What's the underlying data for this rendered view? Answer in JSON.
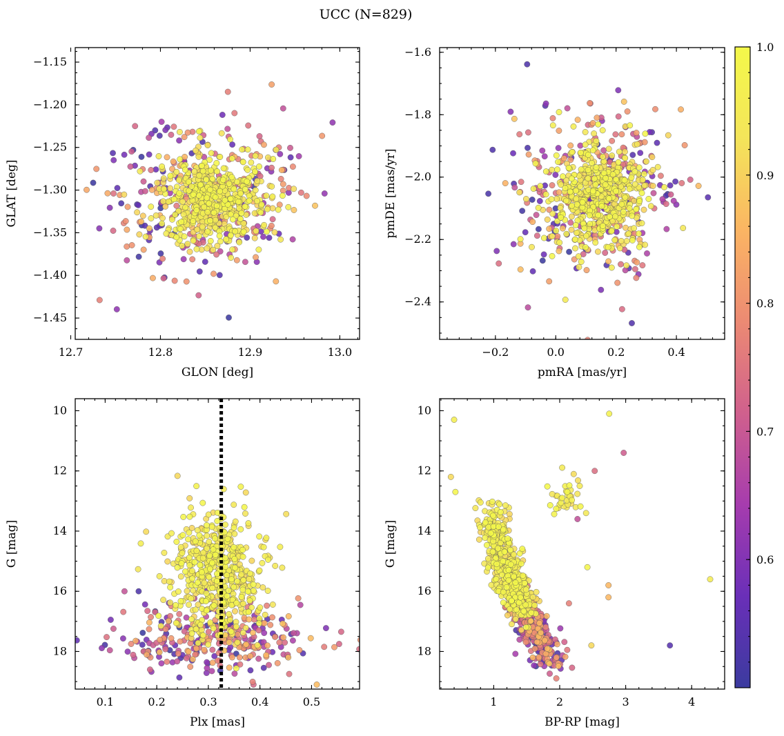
{
  "chart_data": {
    "title": "UCC (N=829)",
    "type": "scatter",
    "n_points": 829,
    "colorbar": {
      "range": [
        0.5,
        1.0
      ],
      "ticks": [
        0.6,
        0.7,
        0.8,
        0.9,
        1.0
      ],
      "tick_labels": [
        "0.6",
        "0.7",
        "0.8",
        "0.9",
        "1.0"
      ],
      "colormap": "plasma",
      "stops": [
        "#3b3b9f",
        "#6a2fb8",
        "#a63cae",
        "#d0608d",
        "#ec8a73",
        "#fbb563",
        "#f4e55a",
        "#f4f84a"
      ]
    },
    "panels": [
      {
        "id": "glon-glat",
        "xlabel": "GLON [deg]",
        "ylabel": "GLAT [deg]",
        "xlim": [
          12.705,
          13.022
        ],
        "ylim": [
          -1.475,
          -1.133
        ],
        "y_inverted": false,
        "xticks": [
          12.7,
          12.8,
          12.9,
          13.0
        ],
        "xtick_labels": [
          "12.7",
          "12.8",
          "12.9",
          "13.0"
        ],
        "yticks": [
          -1.15,
          -1.2,
          -1.25,
          -1.3,
          -1.35,
          -1.4,
          -1.45
        ],
        "ytick_labels": [
          "−1.15",
          "−1.20",
          "−1.25",
          "−1.30",
          "−1.35",
          "−1.40",
          "−1.45"
        ],
        "cluster": {
          "center": [
            12.858,
            -1.31
          ],
          "sigma": [
            0.03,
            0.027
          ]
        },
        "field": {
          "center": [
            12.85,
            -1.31
          ],
          "sigma": [
            0.055,
            0.048
          ]
        },
        "vline": null
      },
      {
        "id": "pmra-pmde",
        "xlabel": "pmRA [mas/yr]",
        "ylabel": "pmDE [mas/yr]",
        "xlim": [
          -0.385,
          0.56
        ],
        "ylim": [
          -2.52,
          -1.585
        ],
        "y_inverted": false,
        "xticks": [
          -0.2,
          0.0,
          0.2,
          0.4
        ],
        "xtick_labels": [
          "−0.2",
          "0.0",
          "0.2",
          "0.4"
        ],
        "yticks": [
          -1.6,
          -1.8,
          -2.0,
          -2.2,
          -2.4
        ],
        "ytick_labels": [
          "−1.6",
          "−1.8",
          "−2.0",
          "−2.2",
          "−2.4"
        ],
        "cluster": {
          "center": [
            0.14,
            -2.06
          ],
          "sigma": [
            0.085,
            0.085
          ]
        },
        "field": {
          "center": [
            0.12,
            -2.06
          ],
          "sigma": [
            0.15,
            0.17
          ]
        },
        "vline": null
      },
      {
        "id": "plx-g",
        "xlabel": "Plx [mas]",
        "ylabel": "G [mag]",
        "xlim": [
          0.042,
          0.593
        ],
        "ylim": [
          9.6,
          19.25
        ],
        "y_inverted": true,
        "xticks": [
          0.1,
          0.2,
          0.3,
          0.4,
          0.5
        ],
        "xtick_labels": [
          "0.1",
          "0.2",
          "0.3",
          "0.4",
          "0.5"
        ],
        "yticks": [
          10,
          12,
          14,
          16,
          18
        ],
        "ytick_labels": [
          "10",
          "12",
          "14",
          "16",
          "18"
        ],
        "cluster": {
          "center": [
            0.315,
            15.4
          ],
          "sigma": [
            0.045,
            1.1
          ]
        },
        "field": {
          "center": [
            0.32,
            17.6
          ],
          "sigma": [
            0.1,
            0.6
          ]
        },
        "vline": {
          "x": 0.325,
          "style": "dotted",
          "color": "#000000"
        }
      },
      {
        "id": "bprp-g",
        "xlabel": "BP-RP [mag]",
        "ylabel": "G [mag]",
        "xlim": [
          0.18,
          4.5
        ],
        "ylim": [
          9.6,
          19.25
        ],
        "y_inverted": true,
        "xticks": [
          1,
          2,
          3,
          4
        ],
        "xtick_labels": [
          "1",
          "2",
          "3",
          "4"
        ],
        "yticks": [
          10,
          12,
          14,
          16,
          18
        ],
        "ytick_labels": [
          "10",
          "12",
          "14",
          "16",
          "18"
        ],
        "sequence": [
          [
            0.95,
            13.2
          ],
          [
            1.1,
            14.5
          ],
          [
            1.25,
            15.6
          ],
          [
            1.45,
            16.6
          ],
          [
            1.65,
            17.4
          ],
          [
            1.85,
            18.3
          ]
        ],
        "giant_branch": {
          "center": [
            2.1,
            12.9
          ],
          "sigma": [
            0.15,
            0.4
          ]
        },
        "outliers": [
          [
            0.4,
            10.3
          ],
          [
            0.35,
            12.2
          ],
          [
            0.42,
            12.7
          ],
          [
            2.75,
            10.1
          ],
          [
            2.97,
            11.4
          ],
          [
            2.53,
            12.0
          ],
          [
            2.4,
            13.4
          ],
          [
            2.27,
            13.6
          ],
          [
            2.42,
            15.2
          ],
          [
            2.74,
            15.8
          ],
          [
            2.74,
            16.2
          ],
          [
            3.67,
            17.8
          ],
          [
            4.28,
            15.6
          ],
          [
            2.48,
            17.8
          ],
          [
            2.14,
            16.4
          ]
        ]
      }
    ]
  }
}
